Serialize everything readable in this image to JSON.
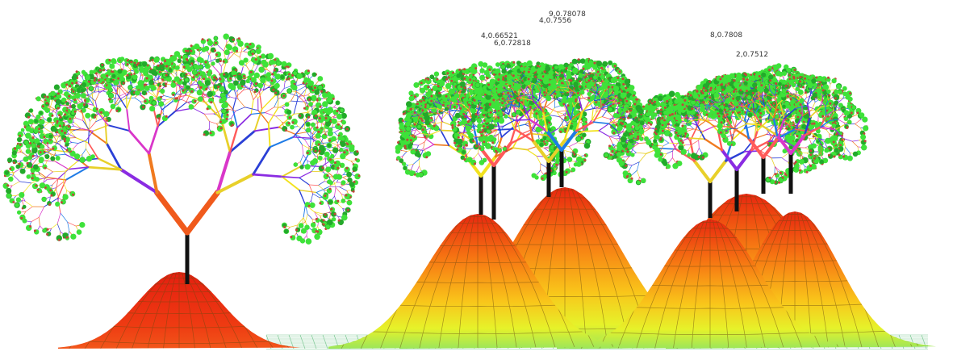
{
  "hill_colors": {
    "peak": "#e8260f",
    "mid": "#f77b13",
    "warm": "#f9c51a",
    "low": "#e6f22a",
    "base": "#9be65a",
    "grid": "#6b4a12",
    "floor": "#4fb56f"
  },
  "foliage_colors": {
    "leaf": "#3ee23a",
    "leaf_dark": "#23a92b",
    "berry": "#c2453a"
  },
  "branch_palette": [
    "#2a3fd6",
    "#1f7be6",
    "#f2e21e",
    "#f07a1f",
    "#d936c9",
    "#8a2be2",
    "#ff5a5a",
    "#e8d02a"
  ],
  "trunk_color": "#111111",
  "labels": {
    "lbl_top_a": "9,0.78078",
    "lbl_top_b": "4,0.7556",
    "lbl_mid_a": "4,0.66521",
    "lbl_mid_b": "6,0.72818",
    "lbl_right_a": "8,0.7808",
    "lbl_right_b": "2,0.7512"
  }
}
